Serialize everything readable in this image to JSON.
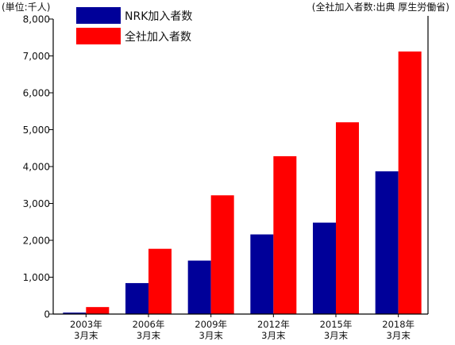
{
  "chart_data": {
    "type": "bar",
    "unit_label": "(単位:千人)",
    "source_note": "(全社加入者数:出典 厚生労働省)",
    "categories": [
      [
        "2003年",
        "3月末"
      ],
      [
        "2006年",
        "3月末"
      ],
      [
        "2009年",
        "3月末"
      ],
      [
        "2012年",
        "3月末"
      ],
      [
        "2015年",
        "3月末"
      ],
      [
        "2018年",
        "3月末"
      ]
    ],
    "series": [
      {
        "name": "NRK加入者数",
        "color": "#000099",
        "values": [
          40,
          840,
          1450,
          2160,
          2480,
          3870
        ]
      },
      {
        "name": "全社加入者数",
        "color": "#ff0000",
        "values": [
          190,
          1770,
          3220,
          4280,
          5200,
          7120
        ]
      }
    ],
    "ylim": [
      0,
      8000
    ],
    "yticks": [
      "0",
      "1,000",
      "2,000",
      "3,000",
      "4,000",
      "5,000",
      "6,000",
      "7,000",
      "8,000"
    ],
    "grid": false,
    "legend_position": "top-left"
  }
}
